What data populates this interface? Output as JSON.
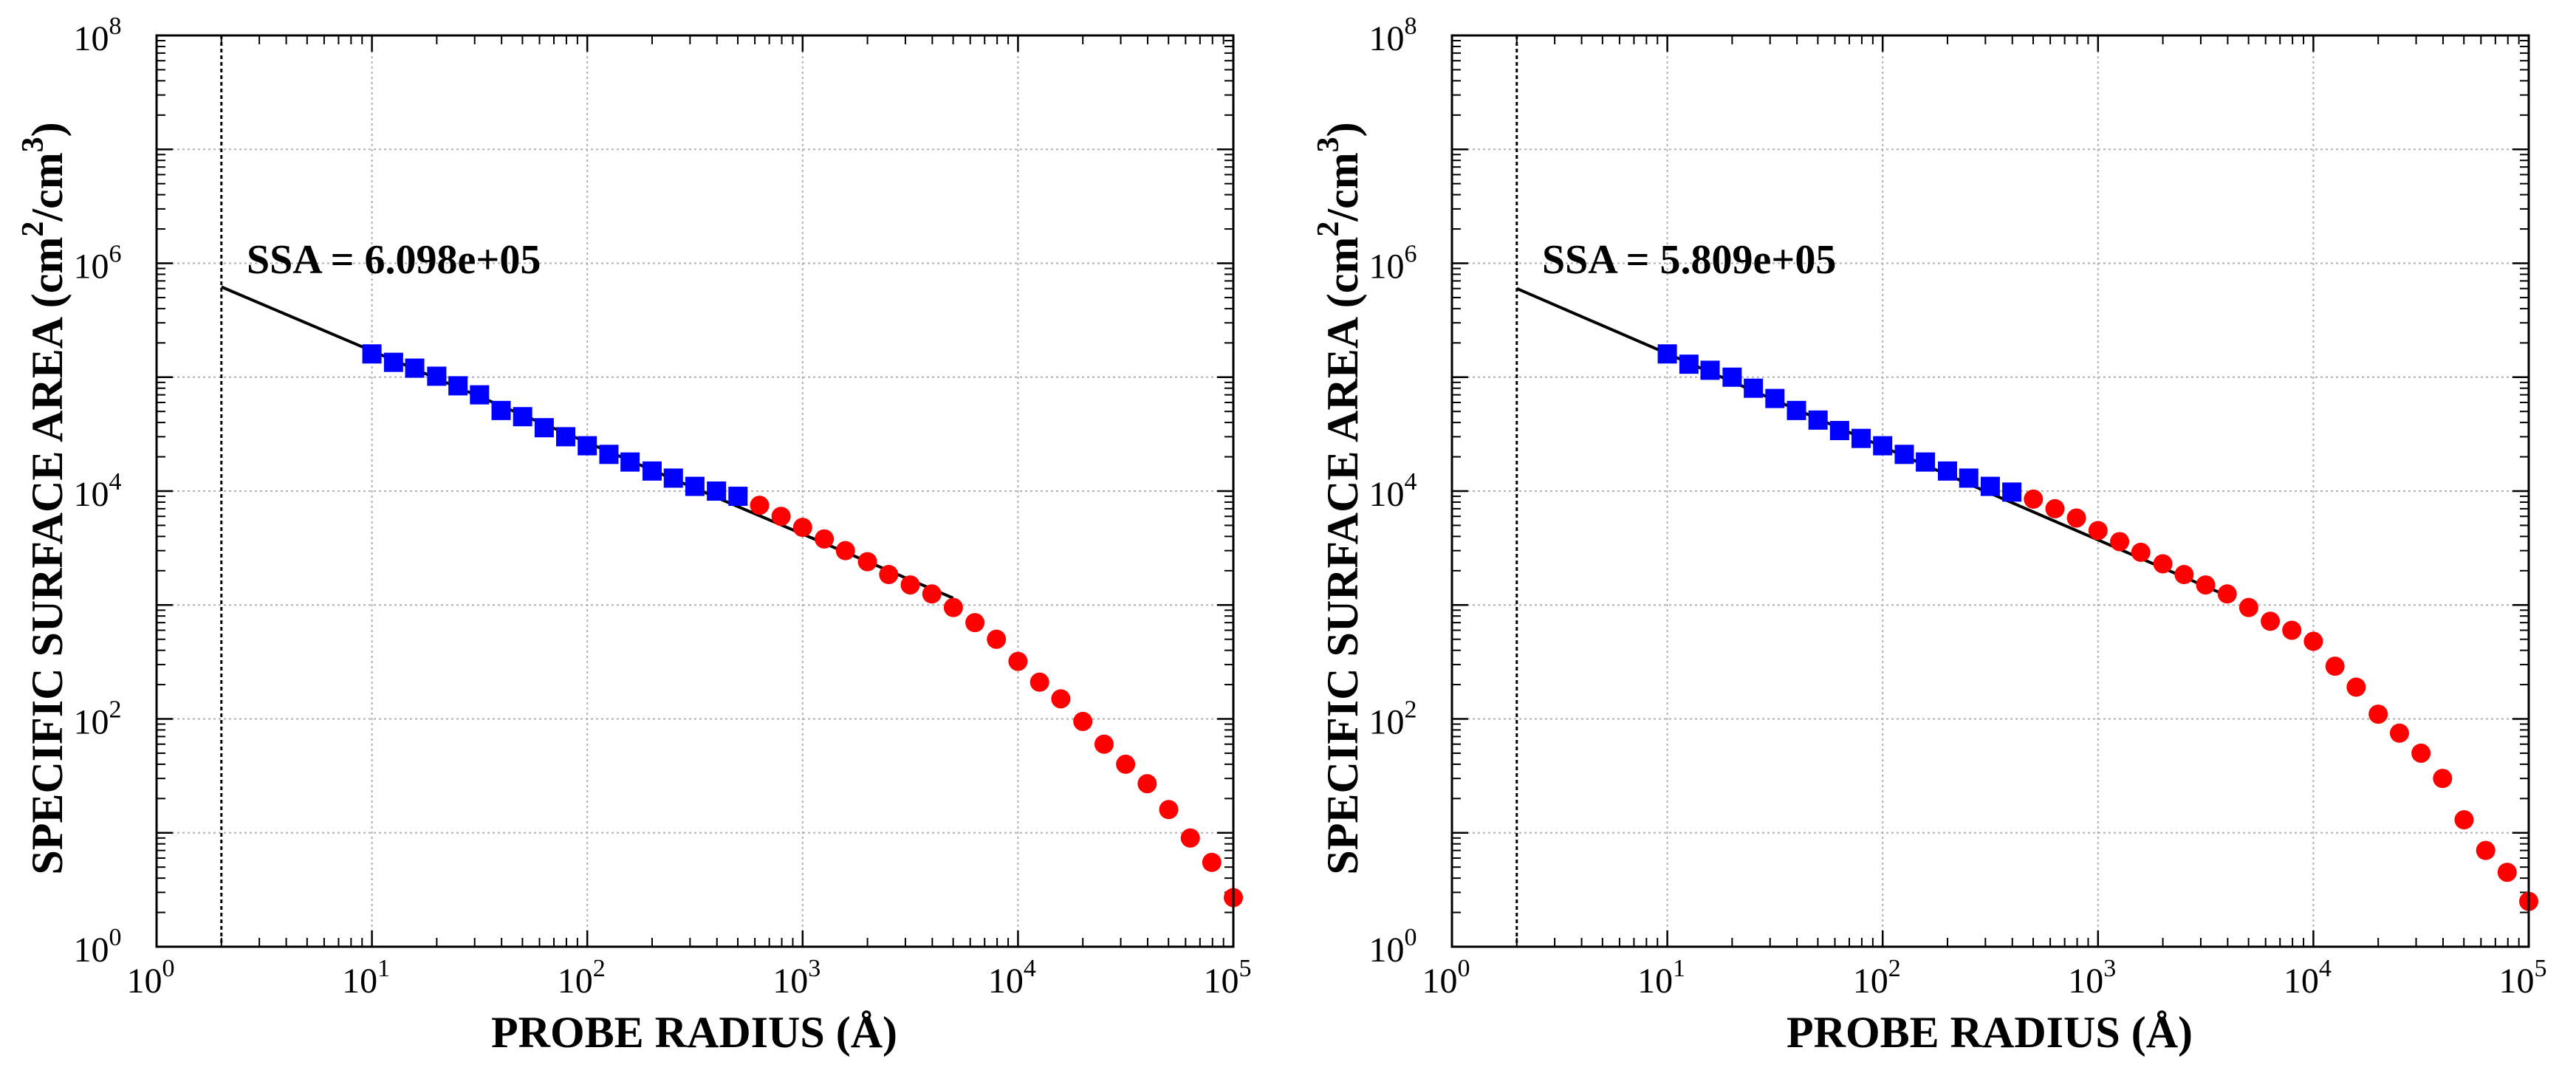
{
  "chart_data": [
    {
      "type": "scatter",
      "xscale": "log",
      "yscale": "log",
      "xlabel": "PROBE RADIUS (Å)",
      "ylabel": "SPECIFIC SURFACE AREA (cm",
      "ylabel_sup1": "2",
      "ylabel_mid": "/cm",
      "ylabel_sup2": "3",
      "ylabel_end": ")",
      "xlim": [
        1,
        100000
      ],
      "ylim": [
        1,
        100000000
      ],
      "grid": true,
      "x_ticks": [
        {
          "base": "10",
          "exp": "0",
          "value": 1
        },
        {
          "base": "10",
          "exp": "1",
          "value": 10
        },
        {
          "base": "10",
          "exp": "2",
          "value": 100
        },
        {
          "base": "10",
          "exp": "3",
          "value": 1000
        },
        {
          "base": "10",
          "exp": "4",
          "value": 10000
        },
        {
          "base": "10",
          "exp": "5",
          "value": 100000
        }
      ],
      "y_ticks": [
        {
          "base": "10",
          "exp": "0",
          "value": 1
        },
        {
          "base": "10",
          "exp": "2",
          "value": 100
        },
        {
          "base": "10",
          "exp": "4",
          "value": 10000
        },
        {
          "base": "10",
          "exp": "6",
          "value": 1000000
        },
        {
          "base": "10",
          "exp": "8",
          "value": 100000000
        }
      ],
      "annotation": "SSA = 6.098e+05",
      "vline_x": 2,
      "fit_line": {
        "x": [
          2,
          5000
        ],
        "y": [
          620000,
          1150
        ]
      },
      "series": [
        {
          "name": "fitted",
          "marker": "square",
          "color": "#0000ff",
          "x": [
            10,
            12.6,
            15.8,
            20,
            25.1,
            31.6,
            39.8,
            50.1,
            63.1,
            79.4,
            100,
            126,
            158,
            200,
            251,
            316,
            398,
            501
          ],
          "y": [
            160000,
            135000,
            120000,
            102000,
            84000,
            70000,
            51000,
            45000,
            36000,
            30000,
            25000,
            21000,
            18000,
            15000,
            13000,
            11000,
            10000,
            9000
          ]
        },
        {
          "name": "other",
          "marker": "circle",
          "color": "#ff0000",
          "x": [
            631,
            794,
            1000,
            1260,
            1580,
            2000,
            2510,
            3160,
            3980,
            5010,
            6310,
            7940,
            10000,
            12600,
            15800,
            20000,
            25100,
            31600,
            39800,
            50100,
            63100,
            79400,
            100000
          ],
          "y": [
            7500,
            6000,
            4800,
            3800,
            3000,
            2400,
            1850,
            1500,
            1250,
            950,
            700,
            500,
            320,
            210,
            150,
            95,
            60,
            40,
            27,
            16,
            9,
            5.5,
            2.7
          ]
        }
      ]
    },
    {
      "type": "scatter",
      "xscale": "log",
      "yscale": "log",
      "xlabel": "PROBE RADIUS (Å)",
      "ylabel": "SPECIFIC SURFACE AREA (cm",
      "ylabel_sup1": "2",
      "ylabel_mid": "/cm",
      "ylabel_sup2": "3",
      "ylabel_end": ")",
      "xlim": [
        1,
        100000
      ],
      "ylim": [
        1,
        100000000
      ],
      "grid": true,
      "x_ticks": [
        {
          "base": "10",
          "exp": "0",
          "value": 1
        },
        {
          "base": "10",
          "exp": "1",
          "value": 10
        },
        {
          "base": "10",
          "exp": "2",
          "value": 100
        },
        {
          "base": "10",
          "exp": "3",
          "value": 1000
        },
        {
          "base": "10",
          "exp": "4",
          "value": 10000
        },
        {
          "base": "10",
          "exp": "5",
          "value": 100000
        }
      ],
      "y_ticks": [
        {
          "base": "10",
          "exp": "0",
          "value": 1
        },
        {
          "base": "10",
          "exp": "2",
          "value": 100
        },
        {
          "base": "10",
          "exp": "4",
          "value": 10000
        },
        {
          "base": "10",
          "exp": "6",
          "value": 1000000
        },
        {
          "base": "10",
          "exp": "8",
          "value": 100000000
        }
      ],
      "annotation": "SSA = 5.809e+05",
      "vline_x": 2,
      "fit_line": {
        "x": [
          2,
          4000
        ],
        "y": [
          600000,
          1200
        ]
      },
      "series": [
        {
          "name": "fitted",
          "marker": "square",
          "color": "#0000ff",
          "x": [
            10,
            12.6,
            15.8,
            20,
            25.1,
            31.6,
            39.8,
            50.1,
            63.1,
            79.4,
            100,
            126,
            158,
            200,
            251,
            316,
            398
          ],
          "y": [
            160000,
            130000,
            115000,
            100000,
            80000,
            65000,
            51000,
            42000,
            34000,
            29000,
            25000,
            21000,
            18000,
            15000,
            13000,
            11000,
            9800
          ]
        },
        {
          "name": "other",
          "marker": "circle",
          "color": "#ff0000",
          "x": [
            501,
            631,
            794,
            1000,
            1260,
            1580,
            2000,
            2510,
            3160,
            3980,
            5010,
            6310,
            7940,
            10000,
            12600,
            15800,
            20000,
            25100,
            31600,
            39800,
            50100,
            63100,
            79400,
            100000
          ],
          "y": [
            8500,
            7000,
            5800,
            4500,
            3600,
            2900,
            2300,
            1850,
            1500,
            1250,
            950,
            720,
            600,
            480,
            290,
            190,
            110,
            75,
            50,
            30,
            13,
            7,
            4.5,
            2.5
          ]
        }
      ]
    }
  ]
}
